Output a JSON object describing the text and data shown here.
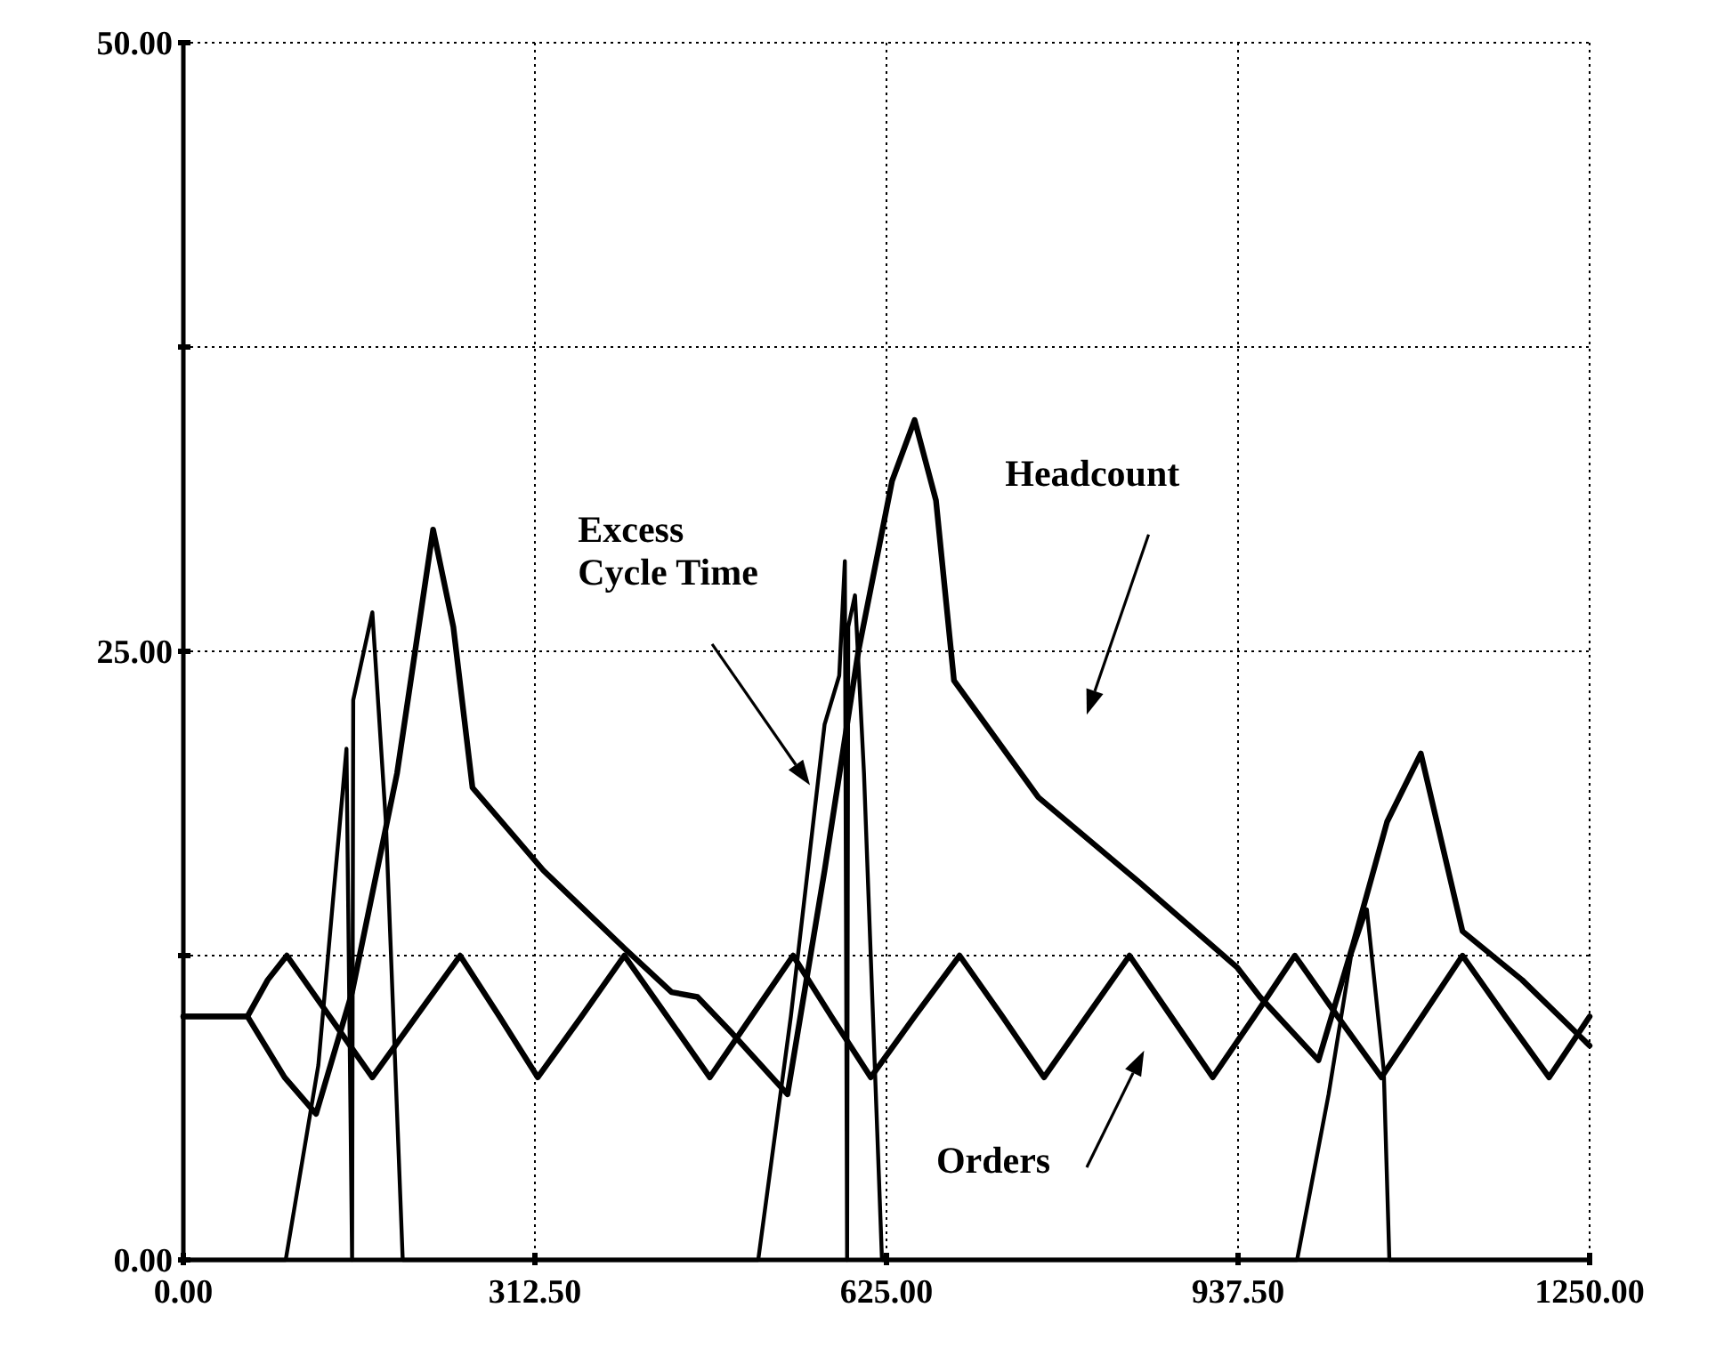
{
  "chart_data": {
    "type": "line",
    "xlim": [
      0,
      1250
    ],
    "ylim": [
      0,
      50
    ],
    "xticks": [
      {
        "value": 0,
        "label": "0.00"
      },
      {
        "value": 312.5,
        "label": "312.50"
      },
      {
        "value": 625,
        "label": "625.00"
      },
      {
        "value": 937.5,
        "label": "937.50"
      },
      {
        "value": 1250,
        "label": "1250.00"
      }
    ],
    "yticks": [
      {
        "value": 0,
        "label": "0.00"
      },
      {
        "value": 12.5,
        "label": null
      },
      {
        "value": 25,
        "label": "25.00"
      },
      {
        "value": 37.5,
        "label": null
      },
      {
        "value": 50,
        "label": "50.00"
      }
    ],
    "grid": true,
    "legend": false,
    "marker": "none",
    "line_style": "solid",
    "series": [
      {
        "name": "Excess Cycle Time",
        "color": "#000000",
        "x": [
          0,
          91,
          120,
          145,
          150,
          151,
          168,
          180,
          195,
          511,
          540,
          570,
          583,
          588,
          590,
          591,
          597,
          605,
          621,
          990,
          1018,
          1038,
          1052,
          1067,
          1072,
          1250
        ],
        "values": [
          0,
          0,
          8,
          21,
          0,
          23,
          26.6,
          18,
          0,
          0,
          10,
          22,
          24,
          28.7,
          0,
          26,
          27.3,
          20,
          0,
          0,
          6.8,
          12.5,
          14.4,
          7.8,
          0,
          0
        ]
      },
      {
        "name": "Headcount",
        "color": "#000000",
        "x": [
          0,
          57,
          90,
          118,
          150,
          190,
          222,
          240,
          257,
          320,
          392,
          434,
          457,
          488,
          537,
          570,
          600,
          630,
          650,
          669,
          685,
          760,
          850,
          937,
          957,
          1009,
          1040,
          1070,
          1100,
          1137,
          1190,
          1250
        ],
        "values": [
          10,
          10,
          7.5,
          6,
          11,
          20,
          30,
          26,
          19.4,
          16,
          12.8,
          11,
          10.8,
          9.3,
          6.8,
          16,
          25,
          32,
          34.5,
          31.2,
          23.8,
          19,
          15.5,
          12,
          10.8,
          8.2,
          13,
          18,
          20.8,
          13.5,
          11.5,
          8.8
        ]
      },
      {
        "name": "Orders",
        "color": "#000000",
        "x": [
          0,
          57,
          75,
          92,
          130,
          168,
          207,
          246,
          281,
          315,
          354,
          392,
          430,
          468,
          505,
          542,
          576,
          611,
          650,
          690,
          728,
          765,
          803,
          841,
          878,
          915,
          952,
          988,
          1026,
          1065,
          1101,
          1137,
          1175,
          1214,
          1250
        ],
        "values": [
          10,
          10,
          11.5,
          12.5,
          10,
          7.5,
          10,
          12.5,
          10,
          7.5,
          10,
          12.5,
          10,
          7.5,
          10,
          12.5,
          10,
          7.5,
          10,
          12.5,
          10,
          7.5,
          10,
          12.5,
          10,
          7.5,
          10,
          12.5,
          10,
          7.5,
          10,
          12.5,
          10,
          7.5,
          10
        ]
      }
    ]
  }
}
